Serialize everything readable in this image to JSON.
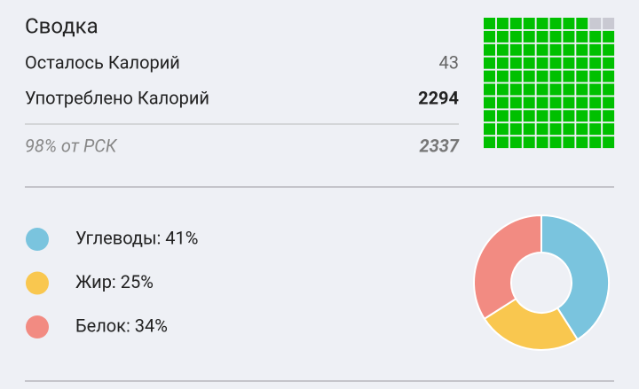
{
  "summary": {
    "title": "Сводка",
    "rows": [
      {
        "label": "Осталось Калорий",
        "value": "43"
      },
      {
        "label": "Употреблено Калорий",
        "value": "2294"
      },
      {
        "label": "98% от РСК",
        "value": "2337"
      }
    ],
    "waffle": {
      "value": 98,
      "color": "#00c000",
      "empty_color": "#c9c9d2"
    }
  },
  "macros": [
    {
      "label": "Углеводы: 41%",
      "value": 41,
      "color": "#7ac4de"
    },
    {
      "label": "Жир: 25%",
      "value": 25,
      "color": "#f9c74f"
    },
    {
      "label": "Белок: 34%",
      "value": 34,
      "color": "#f28b82"
    }
  ]
}
